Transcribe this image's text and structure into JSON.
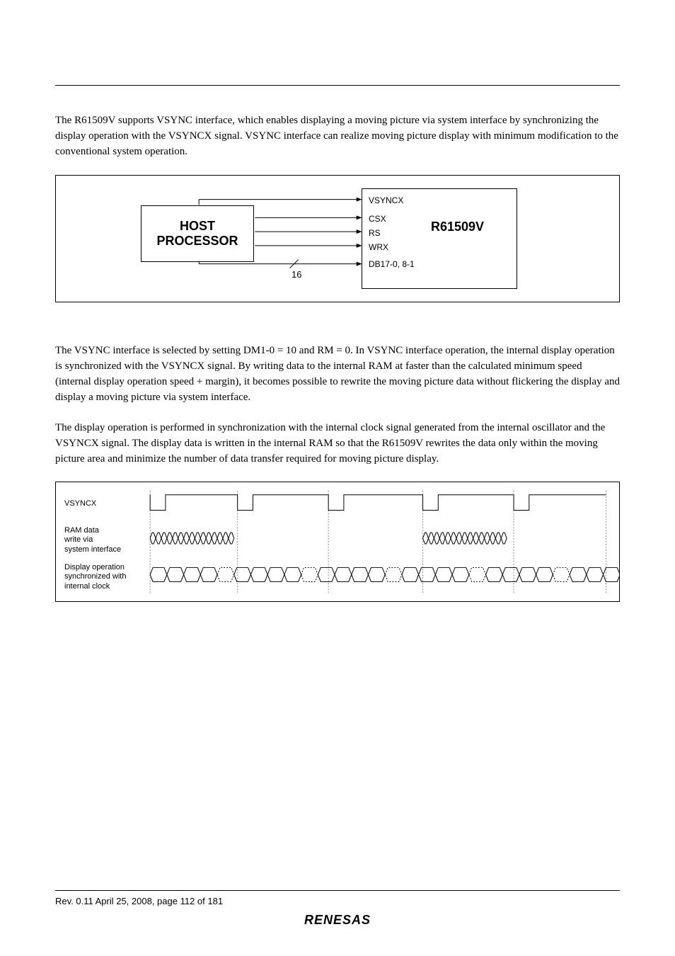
{
  "intro": "The R61509V supports VSYNC interface, which enables displaying a moving picture via system interface by synchronizing the display operation with the VSYNCX signal.  VSYNC interface can realize moving picture display with minimum modification to the conventional system operation.",
  "fig1": {
    "host_line1": "HOST",
    "host_line2": "PROCESSOR",
    "chip": "R61509V",
    "signals": [
      "VSYNCX",
      "CSX",
      "RS",
      "WRX",
      "DB17-0, 8-1"
    ],
    "bus_width": "16"
  },
  "para1": "The VSYNC interface is selected by setting DM1-0 = 10 and RM = 0.  In VSYNC interface operation, the internal display operation is synchronized with the VSYNCX signal.  By writing data to the internal RAM at faster than the calculated minimum speed (internal display operation speed + margin), it becomes possible to rewrite the moving picture data without flickering the display and display a moving picture via system interface.",
  "para2": "The display operation is performed in synchronization with the internal clock signal generated from the internal oscillator and the VSYNCX signal.  The display data is written in the internal RAM so that the R61509V rewrites the data only within the moving picture area and minimize the number of data transfer required for moving picture display.",
  "fig2": {
    "row1": "VSYNCX",
    "row2": "RAM data\nwrite via\nsystem interface",
    "row3": "Display operation\nsynchronized with\ninternal clock"
  },
  "footer": "Rev. 0.11 April 25, 2008, page 112 of 181",
  "logo": "RENESAS"
}
